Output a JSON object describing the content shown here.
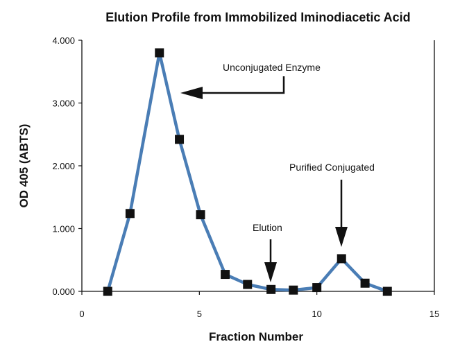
{
  "chart_data": {
    "type": "line",
    "title": "Elution Profile from Immobilized Iminodiacetic Acid",
    "xlabel": "Fraction Number",
    "ylabel": "OD 405 (ABTS)",
    "xlim": [
      0,
      15
    ],
    "ylim": [
      0,
      4
    ],
    "xticks": [
      0,
      5,
      10,
      15
    ],
    "xtick_labels": [
      "0",
      "5",
      "10",
      "15"
    ],
    "yticks": [
      0,
      1,
      2,
      3,
      4
    ],
    "ytick_labels": [
      "0.000",
      "1.000",
      "2.000",
      "3.000",
      "4.000"
    ],
    "grid": false,
    "legend": "none",
    "line_color": "#4a7db5",
    "marker_color": "#111111",
    "series": [
      {
        "x": [
          1.1,
          2.05,
          3.3,
          4.15,
          5.05,
          6.1,
          7.05,
          8.05,
          9.0,
          10.0,
          11.05,
          12.05,
          13.0
        ],
        "y": [
          0.0,
          1.24,
          3.8,
          2.42,
          1.22,
          0.27,
          0.11,
          0.03,
          0.02,
          0.06,
          0.52,
          0.13,
          0.0
        ]
      }
    ],
    "annotations": [
      {
        "text": "Unconjugated Enzyme",
        "x": 3.3,
        "y": 3.8
      },
      {
        "text": "Elution",
        "x": 8.05,
        "y": 0.03
      },
      {
        "text": "Purified Conjugated",
        "x": 11.05,
        "y": 0.52
      }
    ]
  }
}
